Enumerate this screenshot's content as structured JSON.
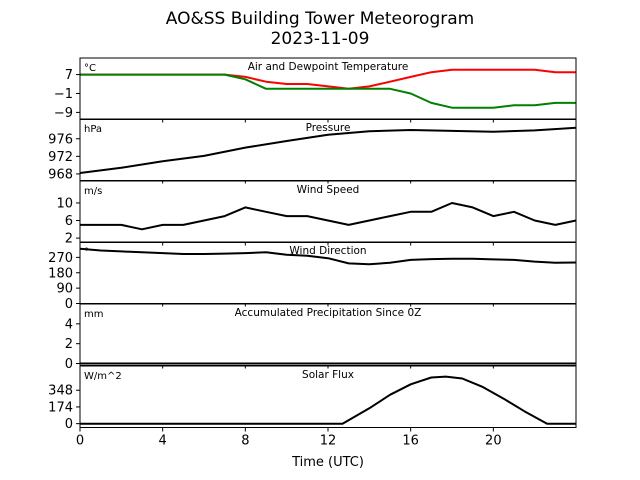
{
  "figure": {
    "title_line1": "AO&SS Building Tower Meteorogram",
    "title_line2": "2023-11-09"
  },
  "xaxis": {
    "label": "Time (UTC)",
    "range": [
      0,
      24
    ],
    "ticks": [
      0,
      4,
      8,
      12,
      16,
      20
    ],
    "tick_labels": [
      "0",
      "4",
      "8",
      "12",
      "16",
      "20"
    ]
  },
  "colors": {
    "air": "#ff0000",
    "dewpoint": "#008000",
    "line": "#000000"
  },
  "chart_data": [
    {
      "type": "line",
      "title": "Air and Dewpoint Temperature",
      "unit": "°C",
      "ylim": [
        -12,
        14
      ],
      "yticks": [
        7,
        -1,
        -9
      ],
      "ytick_labels": [
        "7",
        "−1",
        "−9"
      ],
      "x": [
        0,
        1,
        2,
        3,
        4,
        5,
        6,
        7,
        8,
        9,
        10,
        11,
        12,
        13,
        14,
        15,
        16,
        17,
        18,
        19,
        20,
        21,
        22,
        23,
        24
      ],
      "series": [
        {
          "name": "",
          "color": "#ff0000",
          "values": [
            7,
            7,
            7,
            7,
            7,
            7,
            7,
            7,
            6,
            4,
            3,
            3,
            2,
            1,
            2,
            4,
            6,
            8,
            9,
            9,
            9,
            9,
            9,
            8,
            8
          ]
        },
        {
          "name": "",
          "color": "#008000",
          "values": [
            7,
            7,
            7,
            7,
            7,
            7,
            7,
            7,
            5,
            1,
            1,
            1,
            1,
            1,
            1,
            1,
            -1,
            -5,
            -7,
            -7,
            -7,
            -6,
            -6,
            -5,
            -5
          ]
        }
      ]
    },
    {
      "type": "line",
      "title": "Pressure",
      "unit": "hPa",
      "ylim": [
        966.5,
        980.5
      ],
      "yticks": [
        976,
        972,
        968
      ],
      "ytick_labels": [
        "976",
        "972",
        "968"
      ],
      "x": [
        0,
        2,
        4,
        6,
        8,
        10,
        12,
        14,
        16,
        18,
        20,
        22,
        24
      ],
      "series": [
        {
          "name": "",
          "color": "#000000",
          "values": [
            968.2,
            969.4,
            970.9,
            972.1,
            974.0,
            975.5,
            976.9,
            977.7,
            978.0,
            977.8,
            977.6,
            977.9,
            978.5
          ]
        }
      ]
    },
    {
      "type": "line",
      "title": "Wind Speed",
      "unit": "m/s",
      "ylim": [
        1,
        15
      ],
      "yticks": [
        10,
        6,
        2
      ],
      "ytick_labels": [
        "10",
        "6",
        "2"
      ],
      "x": [
        0,
        1,
        2,
        3,
        4,
        5,
        6,
        7,
        8,
        9,
        10,
        11,
        12,
        13,
        14,
        15,
        16,
        17,
        18,
        19,
        20,
        21,
        22,
        23,
        24
      ],
      "series": [
        {
          "name": "",
          "color": "#000000",
          "values": [
            5,
            5,
            5,
            4,
            5,
            5,
            6,
            7,
            9,
            8,
            7,
            7,
            6,
            5,
            6,
            7,
            8,
            8,
            10,
            9,
            7,
            8,
            6,
            5,
            6
          ]
        }
      ]
    },
    {
      "type": "line",
      "title": "Wind Direction",
      "unit": "°",
      "ylim": [
        0,
        360
      ],
      "yticks": [
        270,
        180,
        90,
        0
      ],
      "ytick_labels": [
        "270",
        "180",
        "90",
        "0"
      ],
      "x": [
        0,
        1,
        2,
        3,
        4,
        5,
        6,
        7,
        8,
        9,
        10,
        11,
        12,
        13,
        14,
        15,
        16,
        17,
        18,
        19,
        20,
        21,
        22,
        23,
        24
      ],
      "series": [
        {
          "name": "",
          "color": "#000000",
          "values": [
            320,
            310,
            305,
            300,
            295,
            290,
            290,
            292,
            295,
            300,
            285,
            280,
            265,
            235,
            230,
            238,
            255,
            260,
            262,
            262,
            258,
            255,
            245,
            238,
            240
          ]
        }
      ]
    },
    {
      "type": "line",
      "title": "Accumulated Precipitation Since 0Z",
      "unit": "mm",
      "ylim": [
        -0.2,
        6
      ],
      "yticks": [
        4,
        2,
        0
      ],
      "ytick_labels": [
        "4",
        "2",
        "0"
      ],
      "x": [
        0,
        24
      ],
      "series": [
        {
          "name": "",
          "color": "#000000",
          "values": [
            0,
            0
          ]
        }
      ]
    },
    {
      "type": "line",
      "title": "Solar Flux",
      "unit": "W/m^2",
      "ylim": [
        -40,
        600
      ],
      "yticks": [
        348,
        174,
        0
      ],
      "ytick_labels": [
        "348",
        "174",
        "0"
      ],
      "x": [
        0,
        12.7,
        14,
        15,
        16,
        17,
        17.7,
        18.5,
        19.5,
        20.5,
        21.5,
        22.6,
        24
      ],
      "series": [
        {
          "name": "",
          "color": "#000000",
          "values": [
            0,
            0,
            160,
            300,
            410,
            480,
            490,
            470,
            380,
            260,
            130,
            0,
            0
          ]
        }
      ]
    }
  ]
}
